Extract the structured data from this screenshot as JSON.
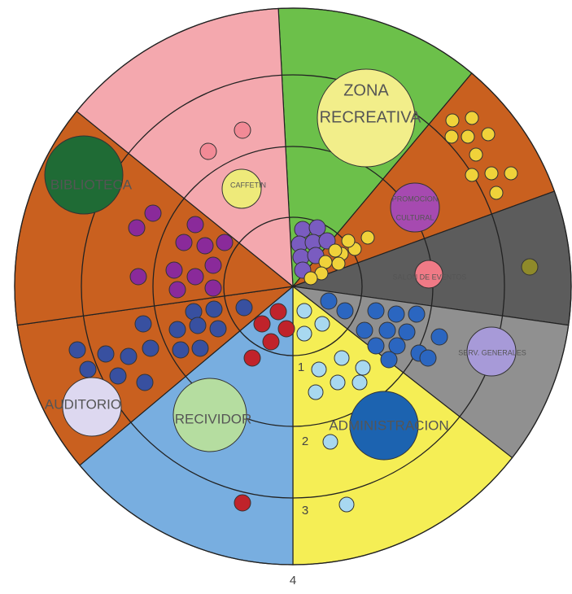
{
  "zones": [
    {
      "label_lines": [
        "ZONA",
        "RECREATIVA"
      ]
    },
    {
      "label_lines": [
        "CAFFETIN"
      ]
    },
    {
      "label_lines": [
        "BIBLIOTECA"
      ]
    },
    {
      "label_lines": [
        "PROMOCION",
        "CULTURAL"
      ]
    },
    {
      "label_lines": [
        "SALON DE EVENTOS"
      ]
    },
    {
      "label_lines": [
        "SERV. GENERALES"
      ]
    },
    {
      "label_lines": [
        "AUDITORIO"
      ]
    },
    {
      "label_lines": [
        "RECIVIDOR"
      ]
    },
    {
      "label_lines": [
        "ADMINISTRACION"
      ]
    }
  ],
  "rings": [
    "1",
    "2",
    "3",
    "4"
  ]
}
